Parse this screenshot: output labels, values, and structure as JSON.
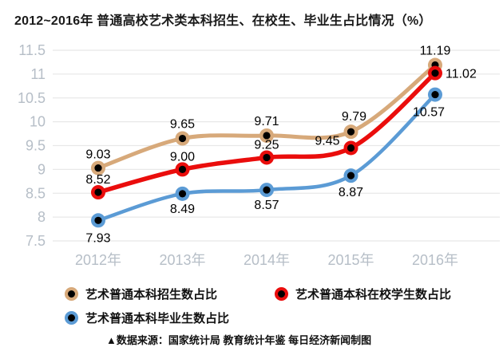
{
  "title": "2012~2016年 普通高校艺术类本科招生、在校生、毕业生占比情况（%）",
  "source_note": "▲数据来源：国家统计局 教育统计年鉴 每日经济新闻制图",
  "colors": {
    "axis_label": "#b6bec7",
    "gridline": "#e8e8e8",
    "data_label": "#000000",
    "marker_center": "#000000",
    "title_text": "#1a1a1a",
    "background": "#ffffff"
  },
  "chart_data": {
    "type": "line",
    "title": "2012~2016年 普通高校艺术类本科招生、在校生、毕业生占比情况（%）",
    "categories": [
      "2012年",
      "2013年",
      "2014年",
      "2015年",
      "2016年"
    ],
    "series": [
      {
        "name": "艺术普通本科招生数占比",
        "color": "#d7a97a",
        "line_width": 5,
        "values": [
          9.03,
          9.65,
          9.71,
          9.79,
          11.19
        ],
        "label_offsets": [
          [
            0,
            -12,
            "middle"
          ],
          [
            0,
            -13,
            "middle"
          ],
          [
            0,
            -13,
            "middle"
          ],
          [
            4,
            -14,
            "middle"
          ],
          [
            0,
            -13,
            "middle"
          ]
        ]
      },
      {
        "name": "艺术普通本科在校学生数占比",
        "color": "#ea0d0c",
        "line_width": 5.5,
        "values": [
          8.52,
          9.0,
          9.25,
          9.45,
          11.02
        ],
        "label_offsets": [
          [
            0,
            -11,
            "middle"
          ],
          [
            0,
            -11,
            "middle"
          ],
          [
            0,
            -11,
            "middle"
          ],
          [
            -14,
            -4,
            "end"
          ],
          [
            13,
            6,
            "start"
          ]
        ]
      },
      {
        "name": "艺术普通本科毕业生数占比",
        "color": "#5b9bd5",
        "line_width": 4.5,
        "values": [
          7.93,
          8.49,
          8.57,
          8.87,
          10.57
        ],
        "label_offsets": [
          [
            0,
            27,
            "middle"
          ],
          [
            0,
            24,
            "middle"
          ],
          [
            0,
            24,
            "middle"
          ],
          [
            0,
            26,
            "middle"
          ],
          [
            -8,
            27,
            "middle"
          ]
        ]
      }
    ],
    "ylim": [
      7.5,
      11.5
    ],
    "ytick_step": 0.5,
    "grid": true,
    "legend_position": "bottom",
    "value_labels_shown": true,
    "value_label_decimals": 2
  }
}
